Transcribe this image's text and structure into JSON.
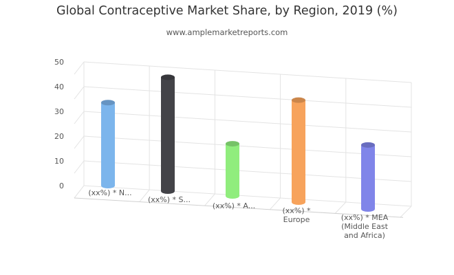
{
  "chart_data": {
    "type": "bar",
    "title": "Global Contraceptive Market Share, by Region, 2019 (%)",
    "subtitle": "www.amplemarketreports.com",
    "xlabel": "",
    "ylabel": "",
    "ylim": [
      0,
      50
    ],
    "yticks": [
      "0",
      "10",
      "20",
      "30",
      "40",
      "50"
    ],
    "grid": true,
    "legend": "none",
    "categories": [
      [
        "(xx%) * N..."
      ],
      [
        "(xx%) * S..."
      ],
      [
        "(xx%) * A..."
      ],
      [
        "(xx%) *",
        "Europe"
      ],
      [
        "(xx%) * MEA",
        "(Middle East",
        "and Africa)"
      ]
    ],
    "values": [
      35,
      48,
      22,
      43,
      27
    ],
    "colors": [
      "#7cb5ec",
      "#434348",
      "#90ed7d",
      "#f7a35c",
      "#8085e9"
    ]
  }
}
